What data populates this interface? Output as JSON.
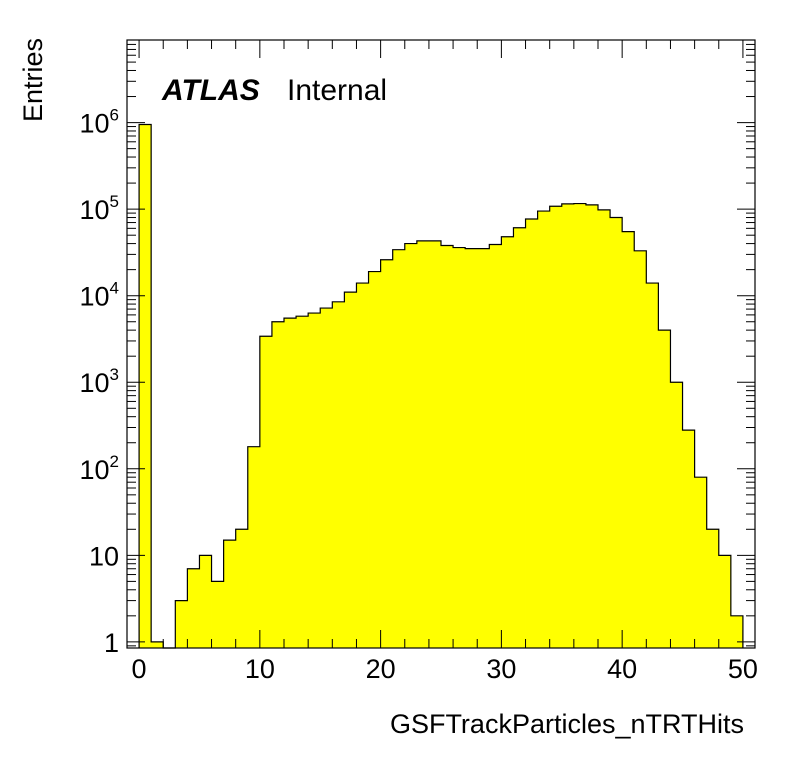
{
  "chart_data": {
    "type": "histogram",
    "title": "",
    "xlabel": "GSFTrackParticles_nTRTHits",
    "ylabel": "Entries",
    "label": {
      "experiment": "ATLAS",
      "status": "Internal"
    },
    "x_range": [
      -1,
      51
    ],
    "y_range": [
      0.85,
      9000000
    ],
    "y_scale": "log",
    "bin_width": 1,
    "bin_start": 0,
    "x_ticks": [
      0,
      10,
      20,
      30,
      40,
      50
    ],
    "y_ticks": [
      {
        "value": 1,
        "base": "1",
        "exp": ""
      },
      {
        "value": 10,
        "base": "10",
        "exp": ""
      },
      {
        "value": 100,
        "base": "10",
        "exp": "2"
      },
      {
        "value": 1000,
        "base": "10",
        "exp": "3"
      },
      {
        "value": 10000,
        "base": "10",
        "exp": "4"
      },
      {
        "value": 100000,
        "base": "10",
        "exp": "5"
      },
      {
        "value": 1000000,
        "base": "10",
        "exp": "6"
      }
    ],
    "fill_color": "#ffff00",
    "line_color": "#000000",
    "grid": false,
    "legend": "none",
    "values": [
      950000,
      1,
      0,
      3,
      7,
      10,
      5,
      15,
      20,
      180,
      3400,
      5000,
      5500,
      5800,
      6300,
      7200,
      8500,
      11000,
      14000,
      19000,
      26000,
      34000,
      40000,
      43000,
      43000,
      38000,
      36000,
      35000,
      35000,
      39000,
      48000,
      61000,
      77000,
      95000,
      108000,
      115000,
      116000,
      112000,
      98000,
      80000,
      55000,
      33000,
      14000,
      4000,
      1000,
      280,
      80,
      20,
      10,
      2
    ]
  }
}
